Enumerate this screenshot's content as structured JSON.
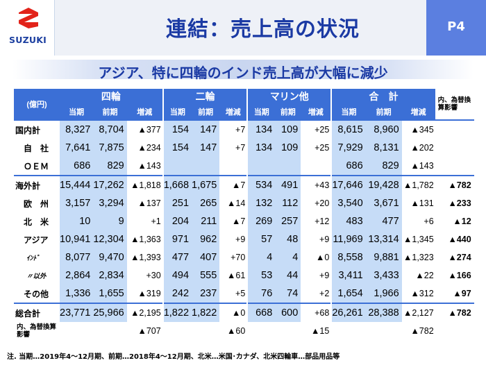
{
  "logo": {
    "brand": "SUZUKI"
  },
  "title": "連結：売上高の状況",
  "page": "P4",
  "subtitle": "アジア、特に四輪のインド売上高が大幅に減少",
  "table": {
    "unit": "(億円)",
    "groups": [
      "四輪",
      "二輪",
      "マリン他",
      "合　計"
    ],
    "subheaders": [
      "当期",
      "前期",
      "増減"
    ],
    "extra_header": "内、為替換算影響",
    "rows": [
      {
        "label": "国内計",
        "indent": 0,
        "cells": [
          "8,327",
          "8,704",
          "▲377",
          "154",
          "147",
          "+7",
          "134",
          "109",
          "+25",
          "8,615",
          "8,960",
          "▲345"
        ],
        "extra": ""
      },
      {
        "label": "自　社",
        "indent": 1,
        "cells": [
          "7,641",
          "7,875",
          "▲234",
          "154",
          "147",
          "+7",
          "134",
          "109",
          "+25",
          "7,929",
          "8,131",
          "▲202"
        ],
        "extra": ""
      },
      {
        "label": "ＯＥＭ",
        "indent": 1,
        "cells": [
          "686",
          "829",
          "▲143",
          "",
          "",
          "",
          "",
          "",
          "",
          "686",
          "829",
          "▲143"
        ],
        "extra": ""
      },
      {
        "label": "海外計",
        "indent": 0,
        "cells": [
          "15,444",
          "17,262",
          "▲1,818",
          "1,668",
          "1,675",
          "▲7",
          "534",
          "491",
          "+43",
          "17,646",
          "19,428",
          "▲1,782"
        ],
        "extra": "▲782"
      },
      {
        "label": "欧　州",
        "indent": 1,
        "cells": [
          "3,157",
          "3,294",
          "▲137",
          "251",
          "265",
          "▲14",
          "132",
          "112",
          "+20",
          "3,540",
          "3,671",
          "▲131"
        ],
        "extra": "▲233"
      },
      {
        "label": "北　米",
        "indent": 1,
        "cells": [
          "10",
          "9",
          "+1",
          "204",
          "211",
          "▲7",
          "269",
          "257",
          "+12",
          "483",
          "477",
          "+6"
        ],
        "extra": "▲12"
      },
      {
        "label": "アジア",
        "indent": 1,
        "cells": [
          "10,941",
          "12,304",
          "▲1,363",
          "971",
          "962",
          "+9",
          "57",
          "48",
          "+9",
          "11,969",
          "13,314",
          "▲1,345"
        ],
        "extra": "▲440"
      },
      {
        "label": "ｲﾝﾄﾞ",
        "indent": 2,
        "cells": [
          "8,077",
          "9,470",
          "▲1,393",
          "477",
          "407",
          "+70",
          "4",
          "4",
          "▲0",
          "8,558",
          "9,881",
          "▲1,323"
        ],
        "extra": "▲274"
      },
      {
        "label": "〃以外",
        "indent": 2,
        "cells": [
          "2,864",
          "2,834",
          "+30",
          "494",
          "555",
          "▲61",
          "53",
          "44",
          "+9",
          "3,411",
          "3,433",
          "▲22"
        ],
        "extra": "▲166"
      },
      {
        "label": "その他",
        "indent": 1,
        "cells": [
          "1,336",
          "1,655",
          "▲319",
          "242",
          "237",
          "+5",
          "76",
          "74",
          "+2",
          "1,654",
          "1,966",
          "▲312"
        ],
        "extra": "▲97"
      }
    ],
    "total": {
      "label": "総合計",
      "cells": [
        "23,771",
        "25,966",
        "▲2,195",
        "1,822",
        "1,822",
        "▲0",
        "668",
        "600",
        "+68",
        "26,261",
        "28,388",
        "▲2,127"
      ],
      "extra": "▲782"
    },
    "fx": {
      "label": "内、為替換算影響",
      "cells": [
        "▲707",
        "▲60",
        "▲15",
        "▲782"
      ]
    }
  },
  "footnote": "注. 当期…2019年4～12月期、前期…2018年4～12月期、北米…米国･カナダ、北米四輪車…部品用品等",
  "colors": {
    "header_blue": "#3b6fd6",
    "cell_blue": "#c6dcf7",
    "title_blue": "#1b3aa4",
    "page_box": "#5b7fe0"
  }
}
